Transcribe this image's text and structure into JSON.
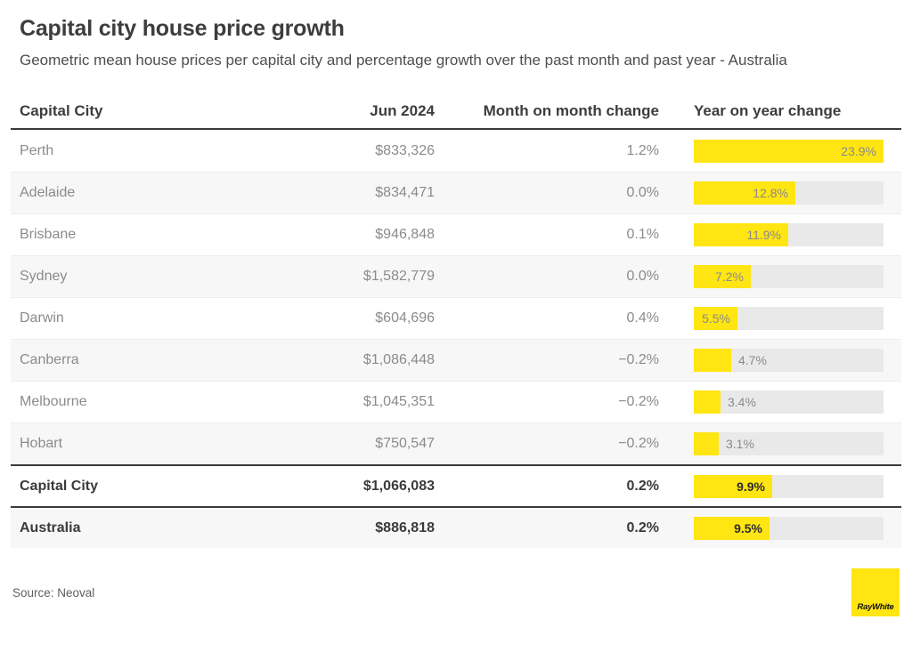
{
  "page": {
    "title": "Capital city house price growth",
    "subtitle": "Geometric mean house prices per capital city and percentage growth over the past month and past year - Australia",
    "source": "Source: Neoval",
    "logo_text": "RayWhite"
  },
  "colors": {
    "accent_yellow": "#ffe512",
    "bar_track_gray": "#e9e9e9",
    "row_alt_gray": "#f7f7f7",
    "text_dark": "#3d3d3d",
    "text_gray": "#8b8b8b"
  },
  "table": {
    "columns": {
      "city": "Capital City",
      "price": "Jun 2024",
      "mom": "Month on month change",
      "yoy": "Year on year change"
    },
    "yoy_max": 23.9,
    "rows": [
      {
        "city": "Perth",
        "price": "$833,326",
        "mom": "1.2%",
        "yoy": 23.9,
        "yoy_label": "23.9%",
        "bold": false
      },
      {
        "city": "Adelaide",
        "price": "$834,471",
        "mom": "0.0%",
        "yoy": 12.8,
        "yoy_label": "12.8%",
        "bold": false
      },
      {
        "city": "Brisbane",
        "price": "$946,848",
        "mom": "0.1%",
        "yoy": 11.9,
        "yoy_label": "11.9%",
        "bold": false
      },
      {
        "city": "Sydney",
        "price": "$1,582,779",
        "mom": "0.0%",
        "yoy": 7.2,
        "yoy_label": "7.2%",
        "bold": false
      },
      {
        "city": "Darwin",
        "price": "$604,696",
        "mom": "0.4%",
        "yoy": 5.5,
        "yoy_label": "5.5%",
        "bold": false
      },
      {
        "city": "Canberra",
        "price": "$1,086,448",
        "mom": "−0.2%",
        "yoy": 4.7,
        "yoy_label": "4.7%",
        "bold": false
      },
      {
        "city": "Melbourne",
        "price": "$1,045,351",
        "mom": "−0.2%",
        "yoy": 3.4,
        "yoy_label": "3.4%",
        "bold": false
      },
      {
        "city": "Hobart",
        "price": "$750,547",
        "mom": "−0.2%",
        "yoy": 3.1,
        "yoy_label": "3.1%",
        "bold": false
      },
      {
        "city": "Capital City",
        "price": "$1,066,083",
        "mom": "0.2%",
        "yoy": 9.9,
        "yoy_label": "9.9%",
        "bold": true
      },
      {
        "city": "Australia",
        "price": "$886,818",
        "mom": "0.2%",
        "yoy": 9.5,
        "yoy_label": "9.5%",
        "bold": true
      }
    ]
  },
  "chart_data": {
    "type": "table",
    "title": "Capital city house price growth",
    "subtitle": "Geometric mean house prices per capital city and percentage growth over the past month and past year - Australia",
    "columns": [
      "Capital City",
      "Jun 2024",
      "Month on month change",
      "Year on year change"
    ],
    "rows": [
      [
        "Perth",
        833326,
        1.2,
        23.9
      ],
      [
        "Adelaide",
        834471,
        0.0,
        12.8
      ],
      [
        "Brisbane",
        946848,
        0.1,
        11.9
      ],
      [
        "Sydney",
        1582779,
        0.0,
        7.2
      ],
      [
        "Darwin",
        604696,
        0.4,
        5.5
      ],
      [
        "Canberra",
        1086448,
        -0.2,
        4.7
      ],
      [
        "Melbourne",
        1045351,
        -0.2,
        3.4
      ],
      [
        "Hobart",
        750547,
        -0.2,
        3.1
      ],
      [
        "Capital City",
        1066083,
        0.2,
        9.9
      ],
      [
        "Australia",
        886818,
        0.2,
        9.5
      ]
    ],
    "bar_column": "Year on year change",
    "bar_type": "bar",
    "bar_range": [
      0,
      23.9
    ],
    "source": "Source: Neoval"
  }
}
